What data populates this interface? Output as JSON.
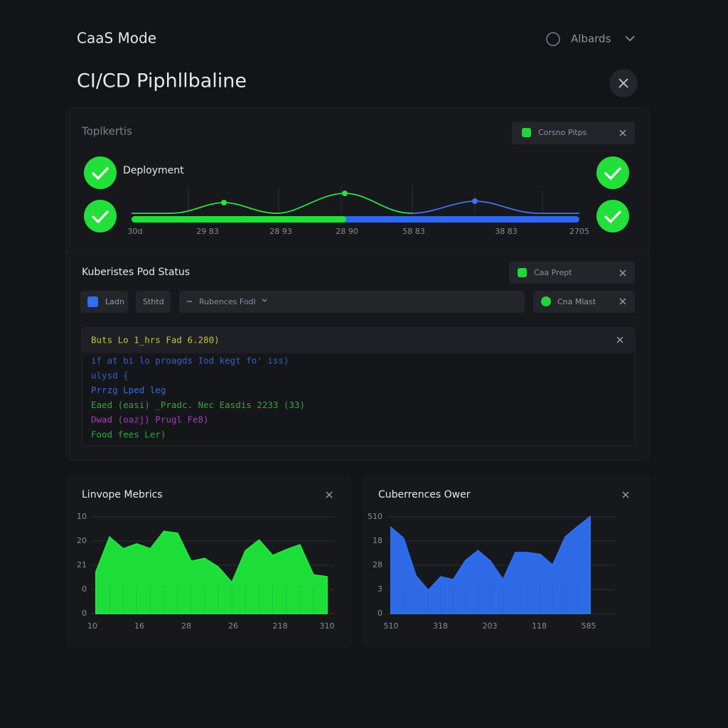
{
  "header": {
    "app": "CaaS Mode",
    "user": "Albards",
    "title": "CI/CD Piphllbaline"
  },
  "pipeline": {
    "title": "Toplkertis",
    "badge": "Corsno Pitps",
    "stage": "Deployment",
    "ticks": [
      "30d",
      "29 83",
      "28 93",
      "28 90",
      "58 83",
      "38 83",
      "2705"
    ]
  },
  "pods": {
    "title": "Kuberistes Pod Status",
    "badge": "Caa Prept",
    "filters": [
      "Ladn",
      "Sthtd"
    ],
    "search": "Rubences Fodl",
    "status": "Cna Mlast"
  },
  "log": {
    "header": "Buts  Lo  1_hrs  Fad  6.280)",
    "lines": [
      "if at bi lo proagds Iod kegt fo' iss)",
      "ulysd {",
      "Prrzg  Lped leg",
      "Eaed (easi) _Pradc. Nec Easdis 2233 (33)",
      "Dwad (oazj) Prugl Fe8)",
      "Food fees Ler)"
    ]
  },
  "metrics": [
    {
      "title": "Linvope Mebrics",
      "color": "#1ee83a",
      "ylim": [
        0,
        100
      ],
      "y_labels": [
        "10",
        "20",
        "21",
        "0",
        "0"
      ],
      "x_labels": [
        "10",
        "16",
        "28",
        "26",
        "218",
        "310"
      ],
      "values": [
        43,
        79,
        67,
        72,
        67,
        85,
        83,
        54,
        57,
        48,
        32,
        65,
        76,
        60,
        66,
        71,
        40,
        38
      ]
    },
    {
      "title": "Cuberrences Ower",
      "color": "#2f6ff0",
      "ylim": [
        0,
        100
      ],
      "y_labels": [
        "510",
        "18",
        "28",
        "3",
        "0"
      ],
      "x_labels": [
        "510",
        "318",
        "203",
        "118",
        "585"
      ],
      "values": [
        89,
        78,
        39,
        24,
        38,
        35,
        55,
        65,
        54,
        35,
        63,
        63,
        61,
        50,
        79,
        90,
        100
      ]
    }
  ]
}
